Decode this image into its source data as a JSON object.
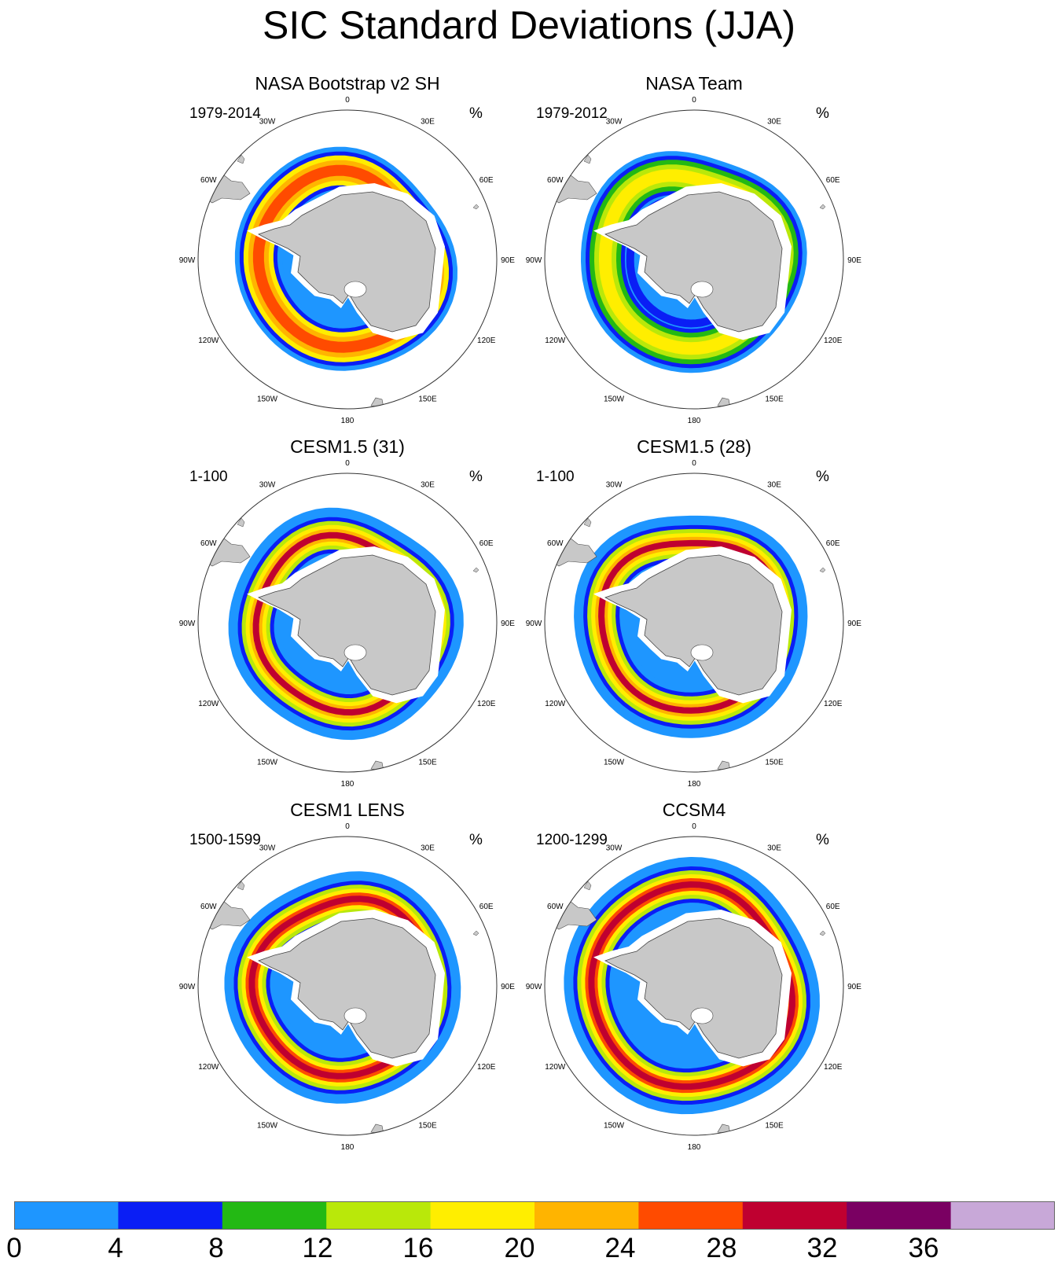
{
  "title": "SIC Standard Deviations (JJA)",
  "panels": [
    {
      "title": "NASA Bootstrap v2 SH",
      "period": "1979-2014",
      "unit": "%"
    },
    {
      "title": "NASA Team",
      "period": "1979-2012",
      "unit": "%"
    },
    {
      "title": "CESM1.5 (31)",
      "period": "1-100",
      "unit": "%"
    },
    {
      "title": "CESM1.5 (28)",
      "period": "1-100",
      "unit": "%"
    },
    {
      "title": "CESM1 LENS",
      "period": "1500-1599",
      "unit": "%"
    },
    {
      "title": "CCSM4",
      "period": "1200-1299",
      "unit": "%"
    }
  ],
  "longitude_labels": [
    "0",
    "30E",
    "60E",
    "90E",
    "120E",
    "150E",
    "180",
    "150W",
    "120W",
    "90W",
    "60W",
    "30W"
  ],
  "colorbar": {
    "labels": [
      "0",
      "4",
      "8",
      "12",
      "16",
      "20",
      "24",
      "28",
      "32",
      "36"
    ],
    "colors": [
      "#1e96ff",
      "#0a1ef5",
      "#23b914",
      "#b9e80a",
      "#ffee00",
      "#ffb400",
      "#ff4b00",
      "#bf0030",
      "#7a0062",
      "#c8a8d8"
    ]
  },
  "land_color": "#c8c8c8",
  "low_sd_color": "#1e96ff"
}
